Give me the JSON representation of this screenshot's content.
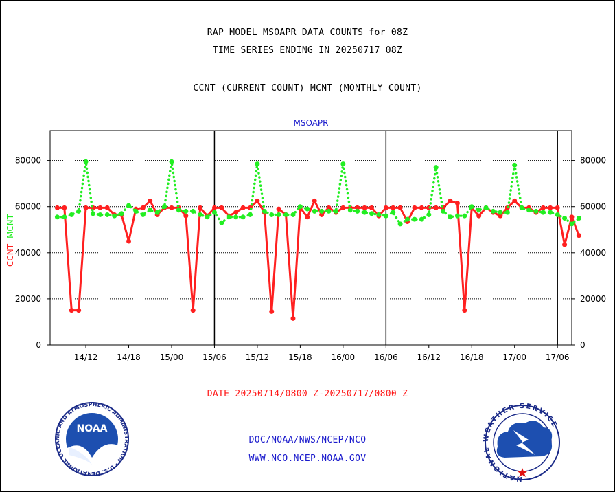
{
  "header": {
    "title_line1": "RAP MODEL MSOAPR DATA COUNTS for 08Z",
    "title_line2": "TIME SERIES ENDING IN 20250717 08Z",
    "legend_line": "CCNT (CURRENT COUNT) MCNT (MONTHLY COUNT)"
  },
  "footer": {
    "date_range": "DATE 20250714/0800 Z-20250717/0800 Z",
    "org_path": "DOC/NOAA/NWS/NCEP/NCO",
    "website": "WWW.NCO.NCEP.NOAA.GOV"
  },
  "logos": {
    "noaa": {
      "text": "NOAA",
      "ring_text": "NATIONAL OCEANIC AND ATMOSPHERIC ADMINISTRATION · U.S. DEPARTMENT OF COMMERCE ·"
    },
    "nws": {
      "ring_text": "NATIONAL WEATHER SERVICE"
    }
  },
  "colors": {
    "ccnt": "#ff2020",
    "mcnt": "#22ee22",
    "title_blue": "#1a1acc",
    "date_red": "#ff1a1a"
  },
  "chart_data": {
    "type": "line",
    "title": "MSOAPR",
    "ylabel_left": [
      "CCNT",
      "MCNT"
    ],
    "ylim": [
      0,
      93000
    ],
    "yticks": [
      0,
      20000,
      40000,
      60000,
      80000
    ],
    "x_unit": "hours since 2025-07-14 08Z",
    "xlim": [
      -1,
      72
    ],
    "xticks": [
      {
        "x": 4,
        "label": "14/12"
      },
      {
        "x": 10,
        "label": "14/18"
      },
      {
        "x": 16,
        "label": "15/00"
      },
      {
        "x": 22,
        "label": "15/06"
      },
      {
        "x": 28,
        "label": "15/12"
      },
      {
        "x": 34,
        "label": "15/18"
      },
      {
        "x": 40,
        "label": "16/00"
      },
      {
        "x": 46,
        "label": "16/06"
      },
      {
        "x": 52,
        "label": "16/12"
      },
      {
        "x": 58,
        "label": "16/18"
      },
      {
        "x": 64,
        "label": "17/00"
      },
      {
        "x": 70,
        "label": "17/06"
      }
    ],
    "day_boundaries": [
      {
        "x": 22,
        "label": "15/06"
      },
      {
        "x": 46,
        "label": "16/06"
      },
      {
        "x": 70,
        "label": "17/06"
      }
    ],
    "grid": true,
    "series": [
      {
        "name": "CCNT",
        "color": "#ff2020",
        "style": "solid",
        "values": [
          59500,
          59500,
          15000,
          15000,
          59500,
          59500,
          59500,
          59500,
          56500,
          56500,
          45000,
          59000,
          59500,
          62500,
          56500,
          59500,
          59500,
          59500,
          56000,
          15000,
          59500,
          56000,
          59500,
          59500,
          56000,
          57500,
          59500,
          59500,
          62500,
          57500,
          14500,
          59000,
          56500,
          11500,
          59500,
          55500,
          62500,
          56500,
          59500,
          57500,
          59500,
          59500,
          59500,
          59500,
          59500,
          56000,
          59500,
          59500,
          59500,
          53500,
          59500,
          59500,
          59500,
          59500,
          59500,
          62500,
          61500,
          15000,
          59500,
          56000,
          59500,
          57500,
          56000,
          59500,
          62500,
          59500,
          59500,
          57500,
          59500,
          59500,
          59500,
          43500,
          55500,
          47500
        ]
      },
      {
        "name": "MCNT",
        "color": "#22ee22",
        "style": "dotted",
        "values": [
          55500,
          55500,
          56500,
          58000,
          79500,
          57000,
          56500,
          56500,
          56000,
          57000,
          60500,
          58000,
          56500,
          58500,
          57500,
          60000,
          79500,
          58500,
          58000,
          58000,
          56500,
          55500,
          57500,
          53000,
          55500,
          55500,
          55500,
          56500,
          78500,
          58000,
          56500,
          56500,
          56500,
          56500,
          60000,
          59000,
          58000,
          58000,
          58000,
          58000,
          78500,
          58500,
          58000,
          57500,
          57000,
          56500,
          56000,
          57500,
          52500,
          54500,
          54500,
          54500,
          56500,
          77000,
          58000,
          55500,
          56000,
          56000,
          60000,
          58500,
          59500,
          58000,
          57500,
          57500,
          78000,
          59500,
          58500,
          58000,
          57500,
          57500,
          56500,
          55000,
          52500,
          55000
        ]
      }
    ]
  }
}
